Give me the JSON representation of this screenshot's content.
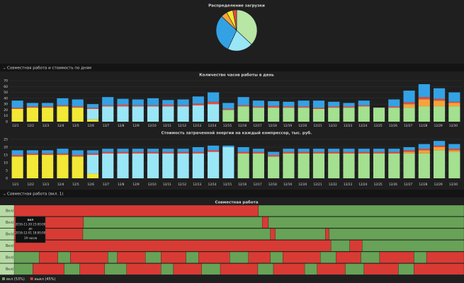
{
  "sections": [
    "Совместная работа и стоимость по дням",
    "Совместная работа (вкл. 1)"
  ],
  "chart_data": [
    {
      "type": "pie",
      "title": "Распределение загрузки",
      "values": [
        37,
        20,
        30,
        5,
        5,
        3
      ],
      "colors": [
        "#b7e6a5",
        "#99e6f7",
        "#33a2e5",
        "#f4a43b",
        "#f2e836",
        "#e24d42"
      ]
    },
    {
      "type": "bar",
      "stacked": true,
      "grid": true,
      "title": "Количество часов работы в день",
      "categories": [
        "12/1",
        "12/2",
        "12/3",
        "12/4",
        "12/5",
        "12/6",
        "12/7",
        "12/8",
        "12/9",
        "12/10",
        "12/11",
        "12/12",
        "12/13",
        "12/14",
        "12/15",
        "12/16",
        "12/17",
        "12/18",
        "12/19",
        "12/20",
        "12/21",
        "12/22",
        "12/23",
        "12/24",
        "12/25",
        "12/26",
        "12/27",
        "12/28",
        "12/29",
        "12/30"
      ],
      "ylim": [
        0,
        70
      ],
      "yticks": [
        0,
        10,
        20,
        30,
        40,
        50,
        60,
        70
      ],
      "series": [
        {
          "color": "#f2e836",
          "values": [
            22,
            24,
            24,
            26,
            24,
            4,
            0,
            0,
            0,
            0,
            0,
            0,
            0,
            0,
            0,
            0,
            0,
            0,
            0,
            0,
            0,
            0,
            0,
            0,
            0,
            0,
            0,
            0,
            0,
            0
          ]
        },
        {
          "color": "#99e6f7",
          "values": [
            0,
            0,
            0,
            0,
            0,
            18,
            26,
            26,
            26,
            26,
            26,
            26,
            28,
            30,
            0,
            0,
            0,
            0,
            0,
            0,
            0,
            0,
            0,
            0,
            0,
            0,
            0,
            0,
            0,
            0
          ]
        },
        {
          "color": "#a3e08f",
          "values": [
            0,
            0,
            0,
            0,
            0,
            0,
            0,
            0,
            0,
            0,
            0,
            0,
            0,
            0,
            20,
            26,
            24,
            24,
            24,
            24,
            22,
            24,
            24,
            26,
            24,
            24,
            24,
            26,
            26,
            26
          ]
        },
        {
          "color": "#f4a43b",
          "values": [
            0,
            0,
            0,
            0,
            0,
            0,
            0,
            0,
            0,
            0,
            0,
            0,
            0,
            0,
            0,
            0,
            0,
            0,
            0,
            0,
            0,
            0,
            0,
            0,
            0,
            0,
            6,
            12,
            10,
            6
          ]
        },
        {
          "color": "#e24d42",
          "values": [
            2,
            2,
            2,
            2,
            2,
            2,
            2,
            3,
            2,
            2,
            3,
            2,
            3,
            4,
            2,
            2,
            2,
            3,
            2,
            2,
            2,
            2,
            2,
            2,
            0,
            2,
            3,
            4,
            3,
            2
          ]
        },
        {
          "color": "#33a2e5",
          "values": [
            12,
            6,
            6,
            12,
            12,
            6,
            14,
            10,
            10,
            12,
            8,
            10,
            12,
            16,
            10,
            14,
            10,
            8,
            8,
            10,
            12,
            8,
            6,
            8,
            0,
            12,
            20,
            22,
            18,
            16
          ]
        }
      ]
    },
    {
      "type": "bar",
      "stacked": true,
      "grid": true,
      "title": "Стоимость затраченной энергии на каждый компрессор, тыс. руб.",
      "categories": [
        "12/1",
        "12/2",
        "12/3",
        "12/4",
        "12/5",
        "12/6",
        "12/7",
        "12/8",
        "12/9",
        "12/10",
        "12/11",
        "12/12",
        "12/13",
        "12/14",
        "12/15",
        "12/16",
        "12/17",
        "12/18",
        "12/19",
        "12/20",
        "12/21",
        "12/22",
        "12/23",
        "12/24",
        "12/25",
        "12/26",
        "12/27",
        "12/28",
        "12/29",
        "12/30"
      ],
      "ylim": [
        0,
        25
      ],
      "yticks": [
        0,
        5,
        10,
        15,
        20,
        25
      ],
      "series": [
        {
          "color": "#f2e836",
          "values": [
            14,
            15,
            15,
            15,
            14,
            3,
            0,
            0,
            0,
            0,
            0,
            0,
            0,
            0,
            0,
            0,
            0,
            0,
            0,
            0,
            0,
            0,
            0,
            0,
            0,
            0,
            0,
            0,
            0,
            0
          ]
        },
        {
          "color": "#99e6f7",
          "values": [
            0,
            0,
            0,
            0,
            0,
            12,
            16,
            16,
            16,
            16,
            16,
            16,
            16,
            17,
            20,
            0,
            0,
            0,
            0,
            0,
            0,
            0,
            0,
            0,
            0,
            0,
            0,
            0,
            0,
            0
          ]
        },
        {
          "color": "#a3e08f",
          "values": [
            0,
            0,
            0,
            0,
            0,
            0,
            0,
            0,
            0,
            0,
            0,
            0,
            0,
            0,
            0,
            16,
            16,
            14,
            16,
            16,
            16,
            16,
            16,
            16,
            16,
            16,
            16,
            16,
            18,
            17
          ]
        },
        {
          "color": "#f4a43b",
          "values": [
            0,
            0,
            0,
            0,
            0,
            0,
            0,
            0,
            0,
            0,
            0,
            0,
            0,
            0,
            0,
            0,
            0,
            0,
            0,
            0,
            0,
            0,
            0,
            0,
            0,
            0,
            1,
            2,
            2,
            1
          ]
        },
        {
          "color": "#e24d42",
          "values": [
            1,
            1,
            1,
            1,
            1,
            1,
            1,
            1,
            1,
            1,
            1,
            1,
            1,
            1,
            0,
            1,
            1,
            1,
            1,
            1,
            1,
            1,
            1,
            1,
            1,
            1,
            1,
            1,
            1,
            1
          ]
        },
        {
          "color": "#33a2e5",
          "values": [
            3,
            2,
            2,
            3,
            3,
            2,
            2,
            2,
            2,
            2,
            2,
            2,
            3,
            3,
            1,
            3,
            2,
            2,
            2,
            2,
            2,
            2,
            2,
            2,
            2,
            2,
            2,
            3,
            3,
            3
          ]
        }
      ]
    },
    {
      "type": "timeline",
      "title": "Совместная работа",
      "xlim": [
        0,
        720
      ],
      "legend": [
        {
          "name": "вкл (53%)",
          "color": "#67a257"
        },
        {
          "name": "выкл (45%)",
          "color": "#d83b34"
        }
      ],
      "rows": [
        {
          "label": "Вкл/Л",
          "segments": [
            [
              1,
              391
            ],
            [
              0,
              329
            ]
          ]
        },
        {
          "label": "Вкл/Л",
          "segments": [
            [
              1,
              111
            ],
            [
              0,
              286
            ],
            [
              1,
              10
            ],
            [
              0,
              313
            ]
          ]
        },
        {
          "label": "Вкл/Л",
          "segments": [
            [
              1,
              110
            ],
            [
              0,
              300
            ],
            [
              1,
              8
            ],
            [
              0,
              80
            ],
            [
              1,
              6
            ],
            [
              0,
              216
            ]
          ]
        },
        {
          "label": "Вкл/Л",
          "segments": [
            [
              1,
              507
            ],
            [
              0,
              30
            ],
            [
              1,
              20
            ],
            [
              0,
              163
            ]
          ]
        },
        {
          "label": "Вкл/Л",
          "segments": [
            [
              0,
              40
            ],
            [
              1,
              30
            ],
            [
              0,
              20
            ],
            [
              1,
              60
            ],
            [
              0,
              15
            ],
            [
              1,
              45
            ],
            [
              0,
              25
            ],
            [
              1,
              40
            ],
            [
              0,
              20
            ],
            [
              1,
              50
            ],
            [
              0,
              30
            ],
            [
              1,
              35
            ],
            [
              0,
              20
            ],
            [
              1,
              60
            ],
            [
              0,
              25
            ],
            [
              1,
              40
            ],
            [
              0,
              30
            ],
            [
              1,
              55
            ],
            [
              0,
              20
            ],
            [
              1,
              60
            ]
          ]
        },
        {
          "label": "Вкл/Л",
          "segments": [
            [
              0,
              30
            ],
            [
              1,
              50
            ],
            [
              0,
              25
            ],
            [
              1,
              40
            ],
            [
              0,
              35
            ],
            [
              1,
              55
            ],
            [
              0,
              20
            ],
            [
              1,
              45
            ],
            [
              0,
              30
            ],
            [
              1,
              60
            ],
            [
              0,
              25
            ],
            [
              1,
              50
            ],
            [
              0,
              20
            ],
            [
              1,
              45
            ],
            [
              0,
              30
            ],
            [
              1,
              55
            ],
            [
              0,
              25
            ],
            [
              1,
              80
            ]
          ]
        }
      ],
      "tooltip": {
        "title": "вкл",
        "from": "2016-11-30 23:00:00",
        "sep": "до",
        "to": "2016-12-01 18:00:00",
        "duration": "19 часов"
      }
    }
  ]
}
